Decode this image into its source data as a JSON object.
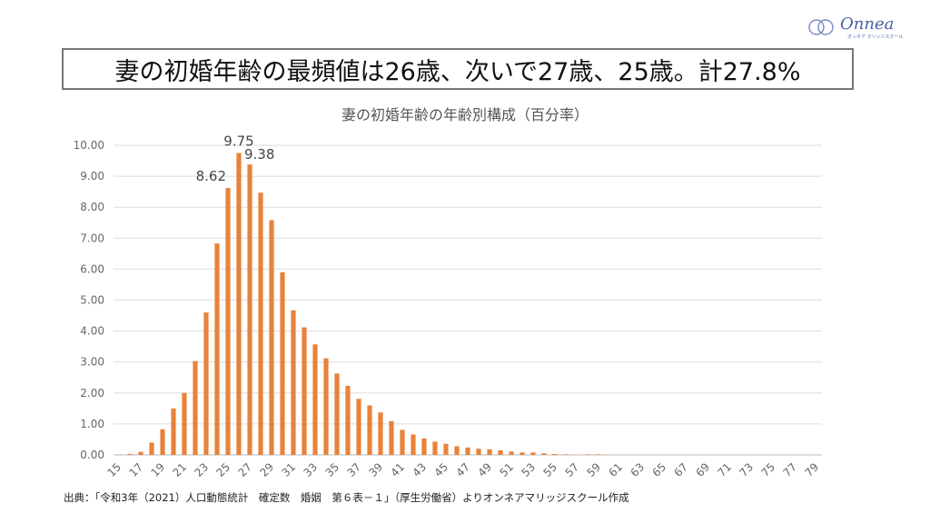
{
  "headline": "妻の初婚年齢の最頻値は26歳、次いで27歳、25歳。計27.8%",
  "logo": {
    "text": "Onnea",
    "subtext": "オンネア マリッジスクール"
  },
  "footer": "出典：「令和3年（2021）人口動態統計　確定数　婚姻　第６表－１」（厚生労働省）よりオンネアマリッジスクール作成",
  "colors": {
    "bar": "#E8823A",
    "grid": "#dddddd",
    "border": "#777777"
  },
  "chart_data": {
    "type": "bar",
    "title": "妻の初婚年齢の年齢別構成（百分率）",
    "xlabel": "",
    "ylabel": "",
    "ylim": [
      0,
      10
    ],
    "yticks": [
      "0.00",
      "1.00",
      "2.00",
      "3.00",
      "4.00",
      "5.00",
      "6.00",
      "7.00",
      "8.00",
      "9.00",
      "10.00"
    ],
    "grid": true,
    "categories": [
      15,
      16,
      17,
      18,
      19,
      20,
      21,
      22,
      23,
      24,
      25,
      26,
      27,
      28,
      29,
      30,
      31,
      32,
      33,
      34,
      35,
      36,
      37,
      38,
      39,
      40,
      41,
      42,
      43,
      44,
      45,
      46,
      47,
      48,
      49,
      50,
      51,
      52,
      53,
      54,
      55,
      56,
      57,
      58,
      59,
      60,
      61,
      62,
      63,
      64,
      65,
      66,
      67,
      68,
      69,
      70,
      71,
      72,
      73,
      74,
      75,
      76,
      77,
      78,
      79
    ],
    "values": [
      0.01,
      0.03,
      0.1,
      0.4,
      0.83,
      1.5,
      2.0,
      3.03,
      4.6,
      6.83,
      8.62,
      9.75,
      9.38,
      8.47,
      7.58,
      5.9,
      4.67,
      4.12,
      3.57,
      3.12,
      2.63,
      2.23,
      1.81,
      1.6,
      1.37,
      1.09,
      0.81,
      0.66,
      0.53,
      0.43,
      0.36,
      0.28,
      0.24,
      0.2,
      0.18,
      0.15,
      0.11,
      0.08,
      0.08,
      0.05,
      0.03,
      0.02,
      0.0,
      0.02,
      0.02,
      0,
      0,
      0,
      0,
      0,
      0,
      0,
      0,
      0,
      0,
      0,
      0,
      0,
      0,
      0,
      0,
      0,
      0,
      0,
      0
    ],
    "data_labels": [
      {
        "category": 25,
        "text": "8.62"
      },
      {
        "category": 26,
        "text": "9.75"
      },
      {
        "category": 27,
        "text": "9.38"
      }
    ]
  }
}
